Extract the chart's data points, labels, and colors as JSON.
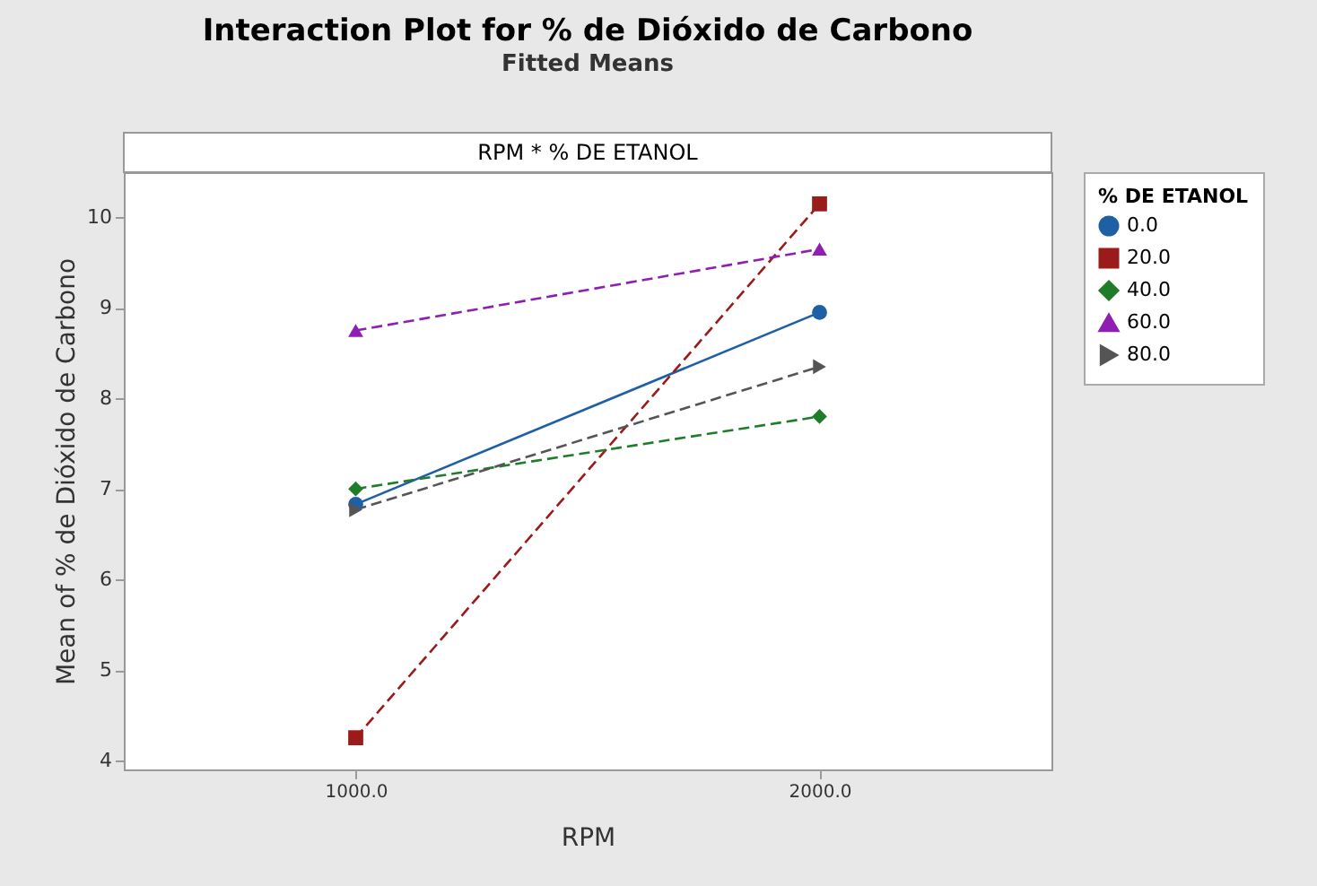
{
  "chart_data": {
    "type": "line",
    "title": "Interaction Plot for % de Dióxido de Carbono",
    "subtitle": "Fitted Means",
    "xlabel": "RPM",
    "ylabel": "Mean of % de Dióxido de Carbono",
    "legend_title": "% DE ETANOL",
    "annotations": [
      "RPM * % DE ETANOL"
    ],
    "categories": [
      "1000.0",
      "2000.0"
    ],
    "series": [
      {
        "name": "0.0",
        "color": "#1f5fa5",
        "values": [
          6.83,
          8.95
        ],
        "marker": "circle",
        "line_style": "solid"
      },
      {
        "name": "20.0",
        "color": "#9b1b1b",
        "values": [
          4.25,
          10.15
        ],
        "marker": "square",
        "line_style": "dashed"
      },
      {
        "name": "40.0",
        "color": "#1f7d2a",
        "values": [
          7.0,
          7.8
        ],
        "marker": "diamond",
        "line_style": "dashed"
      },
      {
        "name": "60.0",
        "color": "#8e1fb0",
        "values": [
          8.75,
          9.65
        ],
        "marker": "triangle",
        "line_style": "dashed"
      },
      {
        "name": "80.0",
        "color": "#555555",
        "values": [
          6.77,
          8.35
        ],
        "marker": "triangle-right",
        "line_style": "dashed"
      }
    ],
    "ylim": [
      3.9,
      10.5
    ],
    "yticks": [
      4,
      5,
      6,
      7,
      8,
      9,
      10
    ],
    "grid": false,
    "legend": "top right"
  }
}
